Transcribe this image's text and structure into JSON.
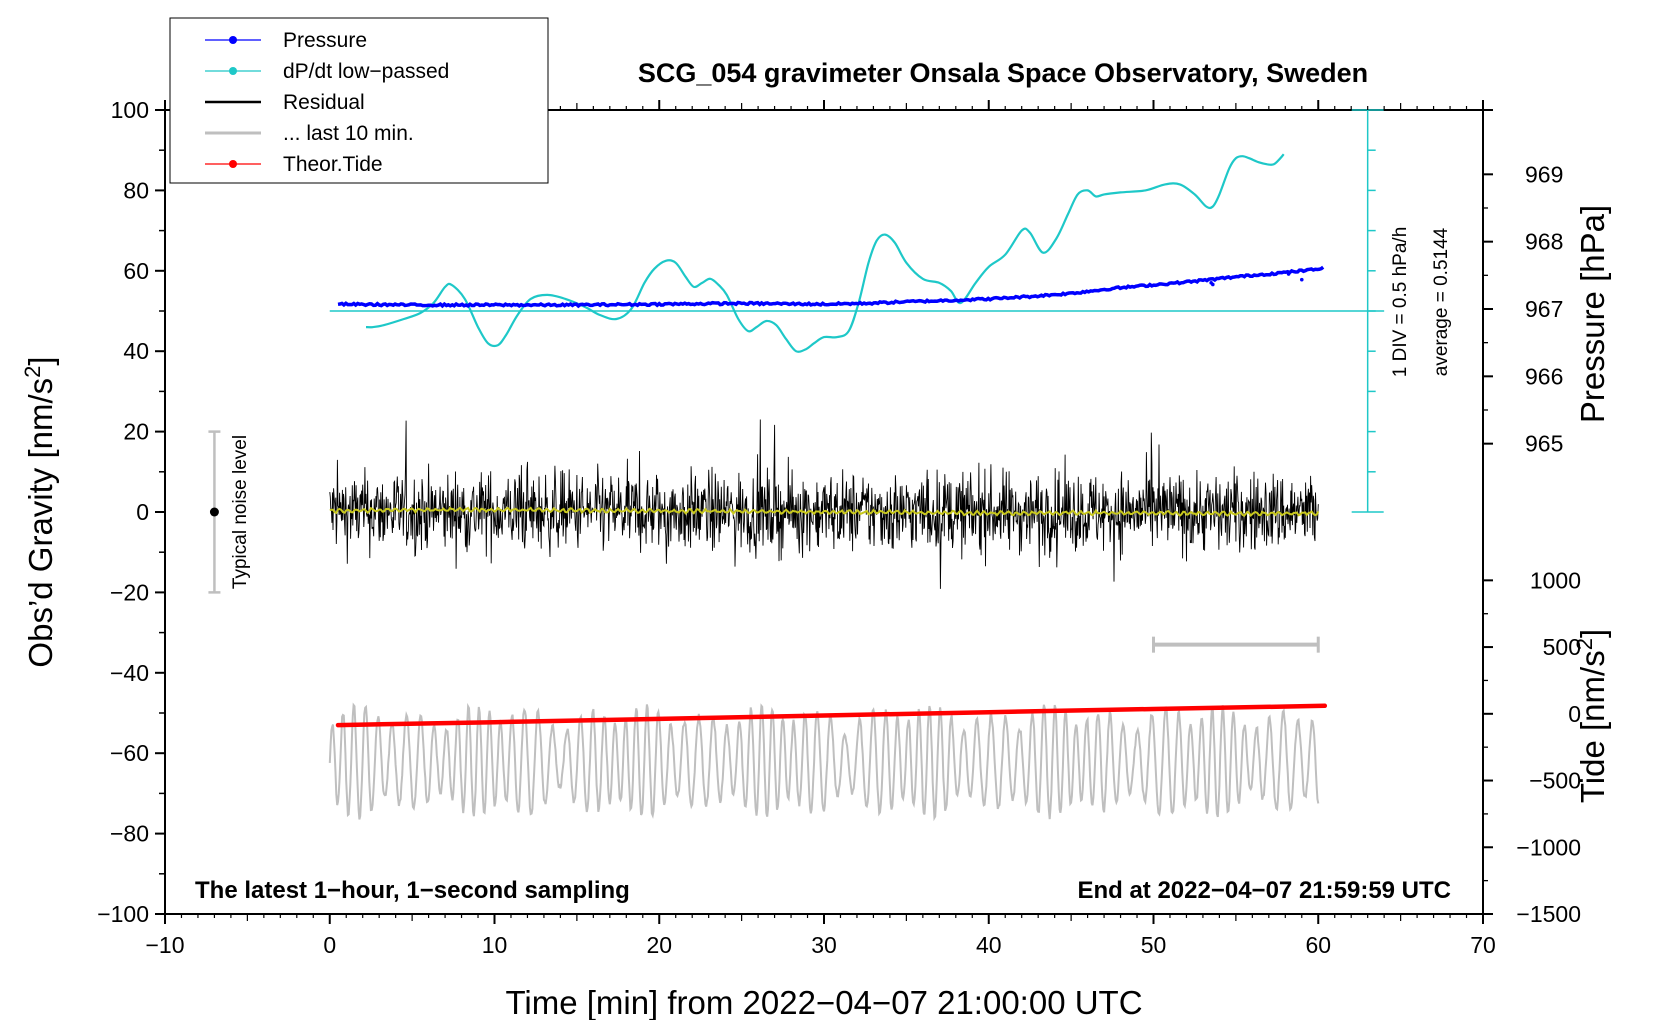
{
  "chart_data": {
    "type": "line",
    "title": "SCG_054 gravimeter Onsala Space Observatory, Sweden",
    "xlabel": "Time [min] from 2022−04−07 21:00:00 UTC",
    "ylabel_left": "Obs’d Gravity [nm/s",
    "ylabel_left_sup": "2",
    "ylabel_left_end": "]",
    "ylabel_right_pressure": "Pressure [hPa]",
    "ylabel_right_tide": "Tide [nm/s",
    "ylabel_right_tide_sup": "2",
    "ylabel_right_tide_end": "]",
    "xlim": [
      -10,
      70
    ],
    "ylim": [
      -100,
      100
    ],
    "x_ticks": [
      -10,
      0,
      10,
      20,
      30,
      40,
      50,
      60,
      70
    ],
    "x_tick_labels": [
      "−10",
      "0",
      "10",
      "20",
      "30",
      "40",
      "50",
      "60",
      "70"
    ],
    "y_ticks": [
      -100,
      -80,
      -60,
      -40,
      -20,
      0,
      20,
      40,
      60,
      80,
      100
    ],
    "y_tick_labels": [
      "−100",
      "−80",
      "−60",
      "−40",
      "−20",
      "0",
      "20",
      "40",
      "60",
      "80",
      "100"
    ],
    "pressure_axis": {
      "ticks": [
        965,
        966,
        967,
        968,
        969
      ],
      "tick_labels": [
        "965",
        "966",
        "967",
        "968",
        "969"
      ],
      "gravity_at": [
        [
          965,
          17
        ],
        [
          969,
          84
        ]
      ]
    },
    "tide_axis": {
      "ticks": [
        -1500,
        -1000,
        -500,
        0,
        500,
        1000
      ],
      "tick_labels": [
        "−1500",
        "−1000",
        "−500",
        "0",
        "500",
        "1000"
      ],
      "gravity_at": [
        [
          -1500,
          -100
        ],
        [
          1000,
          -17
        ]
      ]
    },
    "dpdt_scale": {
      "label": "1 DIV = 0.5 hPa/h",
      "average_label": "average = 0.5144",
      "axis_x": 63,
      "ticks_gravity": [
        0,
        10,
        20,
        30,
        40,
        50,
        60,
        70,
        80,
        90,
        100
      ],
      "baseline_gravity": 50
    },
    "noise_level": {
      "label": "Typical noise level",
      "x": -7,
      "center": 0,
      "range": [
        -20,
        20
      ]
    },
    "last10_bar": {
      "x_range": [
        50,
        60
      ],
      "y": -33
    },
    "footnote_left": "The latest 1−hour, 1−second sampling",
    "footnote_right": "End at 2022−04−07 21:59:59 UTC",
    "legend": [
      {
        "label": "Pressure",
        "color": "#0000ff",
        "marker": "dot"
      },
      {
        "label": "dP/dt low−passed",
        "color": "#1ec8c8",
        "marker": "dot"
      },
      {
        "label": "Residual",
        "color": "#000000",
        "marker": "none"
      },
      {
        "label": "... last 10 min.",
        "color": "#bfbfbf",
        "marker": "none"
      },
      {
        "label": "Theor.Tide",
        "color": "#ff0000",
        "marker": "dot"
      }
    ],
    "series": [
      {
        "name": "Pressure",
        "color": "#0000ff",
        "unit": "gravity-axis",
        "x": [
          0.5,
          5,
          10,
          15,
          20,
          25,
          30,
          32.5,
          35,
          38,
          40,
          42.5,
          45,
          47.5,
          50,
          52.5,
          55,
          57.5,
          60,
          60.3
        ],
        "values": [
          51.7,
          51.5,
          51.5,
          51.5,
          51.7,
          51.9,
          51.7,
          51.9,
          52.3,
          52.7,
          53.0,
          53.6,
          54.4,
          55.6,
          56.5,
          57.4,
          58.5,
          59.4,
          60.4,
          61.0
        ]
      },
      {
        "name": "dP/dt low-passed",
        "color": "#1ec8c8",
        "unit": "gravity-axis",
        "x": [
          2.2,
          2.6,
          3.3,
          4.5,
          5.5,
          6.3,
          7.0,
          7.4,
          8.2,
          9.0,
          9.6,
          10.2,
          10.7,
          11.4,
          12.2,
          13.2,
          14.3,
          15.5,
          16.4,
          17.4,
          18.3,
          19.1,
          19.7,
          20.4,
          21.0,
          21.6,
          22.1,
          22.6,
          23.1,
          23.6,
          24.1,
          24.8,
          25.4,
          25.9,
          26.5,
          27.1,
          27.7,
          28.3,
          28.9,
          29.4,
          30.0,
          30.8,
          31.5,
          32.1,
          32.7,
          33.2,
          33.7,
          34.3,
          35.0,
          36.0,
          37.0,
          37.7,
          38.3,
          39.2,
          40.0,
          41.0,
          42.0,
          42.5,
          43.3,
          44.1,
          44.8,
          45.4,
          46.0,
          46.5,
          47.0,
          48.0,
          49.5,
          50.7,
          51.6,
          52.5,
          53.2,
          53.6,
          54.0,
          54.6,
          55.0,
          55.4,
          55.8,
          56.4,
          56.9,
          57.3,
          57.7,
          57.9
        ],
        "values": [
          46.0,
          46.0,
          46.5,
          48.0,
          49.5,
          52.0,
          56.0,
          56.5,
          53.0,
          46.0,
          42.0,
          41.5,
          44.0,
          49.0,
          53.0,
          54.0,
          53.0,
          51.0,
          49.0,
          48.0,
          50.5,
          57.0,
          60.5,
          62.5,
          62.0,
          58.5,
          56.0,
          57.0,
          58.0,
          56.5,
          54.0,
          48.0,
          45.0,
          46.0,
          47.5,
          46.5,
          43.0,
          40.0,
          40.5,
          42.0,
          43.5,
          43.5,
          45.0,
          52.0,
          62.0,
          67.5,
          69.0,
          67.0,
          62.0,
          58.0,
          57.0,
          55.0,
          52.0,
          57.0,
          61.0,
          64.0,
          70.0,
          69.5,
          64.5,
          68.0,
          74.0,
          79.0,
          80.0,
          78.5,
          79.0,
          79.5,
          80.0,
          81.5,
          81.5,
          79.0,
          76.0,
          76.0,
          79.0,
          85.5,
          88.0,
          88.5,
          88.0,
          87.0,
          86.5,
          86.5,
          88.0,
          89.0
        ]
      },
      {
        "name": "Residual",
        "color": "#000000",
        "unit": "gravity-axis",
        "x_range": [
          0,
          60
        ],
        "typical_amplitude": 8,
        "envelope": [
          -24,
          23
        ]
      },
      {
        "name": "Residual low-passed",
        "color": "#c8c81e",
        "unit": "gravity-axis",
        "x": [
          0,
          5,
          10,
          15,
          20,
          25,
          30,
          35,
          40,
          45,
          50,
          55,
          60
        ],
        "values": [
          0.3,
          0.5,
          0.6,
          0.4,
          0.3,
          0.1,
          0.0,
          -0.1,
          -0.3,
          -0.2,
          -0.3,
          -0.4,
          -0.3
        ]
      },
      {
        "name": "Theor.Tide",
        "color": "#ff0000",
        "unit": "tide-axis",
        "x": [
          0.5,
          10,
          20,
          30,
          40,
          50,
          60.4
        ],
        "values": [
          -85,
          -63,
          -38,
          -13,
          12,
          36,
          60
        ]
      },
      {
        "name": "... last 10 min.",
        "color": "#bfbfbf",
        "unit": "gravity-axis",
        "x_range": [
          0,
          60
        ],
        "center": -62,
        "envelope": [
          -81,
          -43
        ]
      }
    ]
  }
}
